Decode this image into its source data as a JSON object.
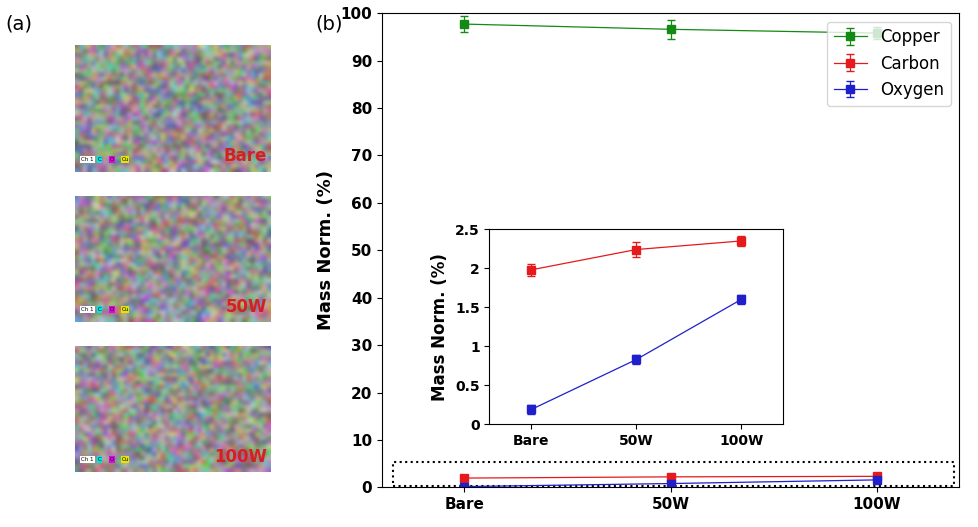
{
  "panel_labels": [
    "(a)",
    "(b)"
  ],
  "maps": [
    {
      "label": "Bare",
      "channels": [
        "Ch 1",
        "C",
        "O",
        "Cu"
      ]
    },
    {
      "label": "50W",
      "channels": [
        "Ch 1",
        "C",
        "O",
        "Cu"
      ]
    },
    {
      "label": "100W",
      "channels": [
        "Ch 1",
        "C",
        "O",
        "Cu"
      ]
    }
  ],
  "chart_data": [
    {
      "type": "line",
      "y_label": "Mass Norm. (%)",
      "categories": [
        "Bare",
        "50W",
        "100W"
      ],
      "ylim": [
        0,
        100
      ],
      "yticks": [
        0,
        10,
        20,
        30,
        40,
        50,
        60,
        70,
        80,
        90,
        100
      ],
      "legend": "upper right",
      "series": [
        {
          "name": "Copper",
          "color": "#138a13",
          "marker": "square",
          "values": [
            97.7,
            96.6,
            95.8
          ],
          "errors": [
            1.6,
            2.0,
            1.3
          ]
        },
        {
          "name": "Carbon",
          "color": "#e41a1c",
          "marker": "square",
          "values": [
            1.98,
            2.24,
            2.35
          ],
          "errors": [
            0.08,
            0.1,
            0.06
          ]
        },
        {
          "name": "Oxygen",
          "color": "#1f1fcc",
          "marker": "square",
          "values": [
            0.19,
            0.83,
            1.6
          ],
          "errors": [
            0.06,
            0.06,
            0.06
          ]
        }
      ]
    },
    {
      "type": "line",
      "y_label": "Mass Norm. (%)",
      "categories": [
        "Bare",
        "50W",
        "100W"
      ],
      "ylim": [
        0,
        2.5
      ],
      "yticks": [
        0,
        0.5,
        1,
        1.5,
        2,
        2.5
      ],
      "series": [
        {
          "name": "Carbon",
          "color": "#e41a1c",
          "marker": "square",
          "values": [
            1.98,
            2.24,
            2.35
          ],
          "errors": [
            0.08,
            0.1,
            0.06
          ]
        },
        {
          "name": "Oxygen",
          "color": "#1f1fcc",
          "marker": "square",
          "values": [
            0.19,
            0.83,
            1.6
          ],
          "errors": [
            0.06,
            0.06,
            0.06
          ]
        }
      ]
    }
  ]
}
